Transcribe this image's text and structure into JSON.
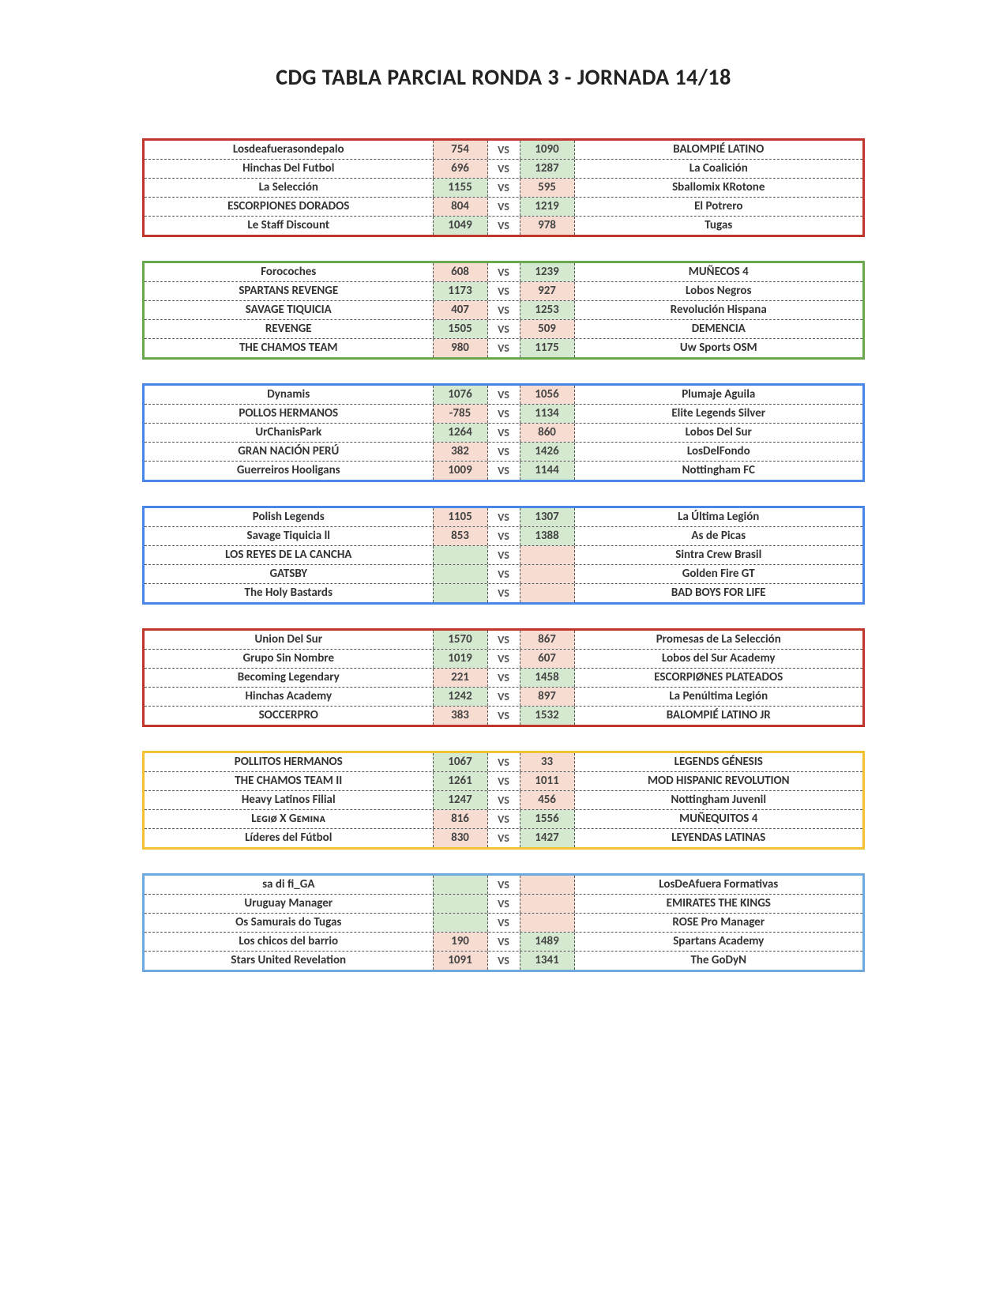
{
  "title": "CDG TABLA PARCIAL RONDA 3 - JORNADA 14/18",
  "vs_label": "VS",
  "colors": {
    "winner_bg": "#d5e8d0",
    "loser_bg": "#f7dcd2",
    "border_red": "#c0362b",
    "border_green": "#6aa84f",
    "border_blue": "#4a86e8",
    "border_yellow": "#f1c232",
    "border_lightblue": "#6fa8dc"
  },
  "groups": [
    {
      "border": "#c0362b",
      "matches": [
        {
          "left": "Losdeafuerasondepalo",
          "s1": "754",
          "s2": "1090",
          "right": "BALOMPIÉ LATINO"
        },
        {
          "left": "Hinchas Del Futbol",
          "s1": "696",
          "s2": "1287",
          "right": "La Coalición"
        },
        {
          "left": "La Selección",
          "s1": "1155",
          "s2": "595",
          "right": "Sballomix KRotone"
        },
        {
          "left": "ESCORPIONES DORADOS",
          "s1": "804",
          "s2": "1219",
          "right": "El Potrero"
        },
        {
          "left": "Le Staff Discount",
          "s1": "1049",
          "s2": "978",
          "right": "Tugas"
        }
      ]
    },
    {
      "border": "#6aa84f",
      "matches": [
        {
          "left": "Forocoches",
          "s1": "608",
          "s2": "1239",
          "right": "MUÑECOS 4"
        },
        {
          "left": "SPARTANS REVENGE",
          "s1": "1173",
          "s2": "927",
          "right": "Lobos Negros"
        },
        {
          "left": "SAVAGE TIQUICIA",
          "s1": "407",
          "s2": "1253",
          "right": "Revolución Hispana"
        },
        {
          "left": "REVENGE",
          "s1": "1505",
          "s2": "509",
          "right": "DEMENCIA"
        },
        {
          "left": "THE CHAMOS TEAM",
          "s1": "980",
          "s2": "1175",
          "right": "Uw Sports OSM"
        }
      ]
    },
    {
      "border": "#4a86e8",
      "matches": [
        {
          "left": "Dynamis",
          "s1": "1076",
          "s2": "1056",
          "right": "Plumaje Aguila"
        },
        {
          "left": "POLLOS HERMANOS",
          "s1": "-785",
          "s2": "1134",
          "right": "Elite Legends Silver"
        },
        {
          "left": "UrChanisPark",
          "s1": "1264",
          "s2": "860",
          "right": "Lobos Del Sur"
        },
        {
          "left": "GRAN NACIÓN PERÚ",
          "s1": "382",
          "s2": "1426",
          "right": "LosDelFondo"
        },
        {
          "left": "Guerreiros Hooligans",
          "s1": "1009",
          "s2": "1144",
          "right": "Nottingham FC"
        }
      ]
    },
    {
      "border": "#4a86e8",
      "matches": [
        {
          "left": "Polish Legends",
          "s1": "1105",
          "s2": "1307",
          "right": "La Última Legión"
        },
        {
          "left": "Savage Tiquicia ll",
          "s1": "853",
          "s2": "1388",
          "right": "As de Picas"
        },
        {
          "left": "LOS REYES DE LA CANCHA",
          "s1": "",
          "s2": "",
          "right": "Sintra Crew Brasil"
        },
        {
          "left": "GATSBY",
          "s1": "",
          "s2": "",
          "right": "Golden Fire GT"
        },
        {
          "left": "The Holy Bastards",
          "s1": "",
          "s2": "",
          "right": "BAD BOYS FOR LIFE"
        }
      ]
    },
    {
      "border": "#c0362b",
      "matches": [
        {
          "left": "Union Del Sur",
          "s1": "1570",
          "s2": "867",
          "right": "Promesas de La Selección"
        },
        {
          "left": "Grupo Sin Nombre",
          "s1": "1019",
          "s2": "607",
          "right": "Lobos del Sur Academy"
        },
        {
          "left": "Becoming Legendary",
          "s1": "221",
          "s2": "1458",
          "right": "ESCORPIØNES PLATEADOS"
        },
        {
          "left": "Hinchas Academy",
          "s1": "1242",
          "s2": "897",
          "right": "La Penúltima Legión"
        },
        {
          "left": "SOCCERPRO",
          "s1": "383",
          "s2": "1532",
          "right": "BALOMPIÉ LATINO JR"
        }
      ]
    },
    {
      "border": "#f1c232",
      "matches": [
        {
          "left": "POLLITOS HERMANOS",
          "s1": "1067",
          "s2": "33",
          "right": "LEGENDS GÉNESIS"
        },
        {
          "left": "THE CHAMOS TEAM II",
          "s1": "1261",
          "s2": "1011",
          "right": "MOD HISPANIC REVOLUTION"
        },
        {
          "left": "Heavy Latinos Filial",
          "s1": "1247",
          "s2": "456",
          "right": "Nottingham Juvenil"
        },
        {
          "left": "Lᴇɢɪø X Gᴇᴍɪɴᴀ",
          "s1": "816",
          "s2": "1556",
          "right": "MUÑEQUITOS 4"
        },
        {
          "left": "Líderes del Fútbol",
          "s1": "830",
          "s2": "1427",
          "right": "LEYENDAS LATINAS"
        }
      ]
    },
    {
      "border": "#6fa8dc",
      "matches": [
        {
          "left": "sa di fi_GA",
          "s1": "",
          "s2": "",
          "right": "LosDeAfuera Formativas"
        },
        {
          "left": "Uruguay Manager",
          "s1": "",
          "s2": "",
          "right": "EMIRATES THE KINGS"
        },
        {
          "left": "Os Samurais do Tugas",
          "s1": "",
          "s2": "",
          "right": "ROSE Pro Manager"
        },
        {
          "left": "Los chicos del barrio",
          "s1": "190",
          "s2": "1489",
          "right": "Spartans Academy"
        },
        {
          "left": "Stars United Revelation",
          "s1": "1091",
          "s2": "1341",
          "right": "The GoDyN"
        }
      ]
    }
  ]
}
